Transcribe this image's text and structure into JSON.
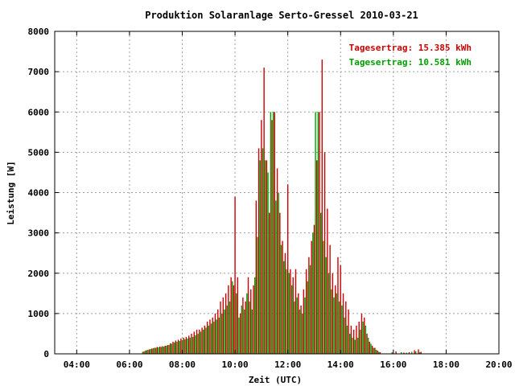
{
  "chart_data": {
    "type": "bar",
    "title": "Produktion Solaranlage Serto-Gressel 2010-03-21",
    "xlabel": "Zeit (UTC)",
    "ylabel": "Leistung [W]",
    "xlim": [
      3.1666667,
      20.0
    ],
    "ylim": [
      0,
      8000
    ],
    "x_ticks": [
      "04:00",
      "06:00",
      "08:00",
      "10:00",
      "12:00",
      "14:00",
      "16:00",
      "18:00",
      "20:00"
    ],
    "x_tick_values": [
      4,
      6,
      8,
      10,
      12,
      14,
      16,
      18,
      20
    ],
    "y_ticks": [
      "0",
      "1000",
      "2000",
      "3000",
      "4000",
      "5000",
      "6000",
      "7000",
      "8000"
    ],
    "y_tick_values": [
      0,
      1000,
      2000,
      3000,
      4000,
      5000,
      6000,
      7000,
      8000
    ],
    "grid": true,
    "legend_position": "top-right",
    "series": [
      {
        "name": "Tagesertrag: 15.385 kWh",
        "color": "#cc0000",
        "points": [
          [
            6.55,
            60
          ],
          [
            6.65,
            90
          ],
          [
            6.75,
            110
          ],
          [
            6.85,
            130
          ],
          [
            6.95,
            150
          ],
          [
            7.05,
            170
          ],
          [
            7.15,
            180
          ],
          [
            7.25,
            190
          ],
          [
            7.35,
            200
          ],
          [
            7.45,
            220
          ],
          [
            7.55,
            260
          ],
          [
            7.65,
            300
          ],
          [
            7.75,
            330
          ],
          [
            7.85,
            350
          ],
          [
            7.95,
            380
          ],
          [
            8.05,
            400
          ],
          [
            8.15,
            420
          ],
          [
            8.25,
            450
          ],
          [
            8.35,
            500
          ],
          [
            8.45,
            550
          ],
          [
            8.55,
            600
          ],
          [
            8.65,
            600
          ],
          [
            8.75,
            650
          ],
          [
            8.85,
            700
          ],
          [
            8.95,
            800
          ],
          [
            9.05,
            850
          ],
          [
            9.15,
            900
          ],
          [
            9.25,
            1000
          ],
          [
            9.35,
            1100
          ],
          [
            9.45,
            1300
          ],
          [
            9.55,
            1400
          ],
          [
            9.65,
            1500
          ],
          [
            9.75,
            1700
          ],
          [
            9.85,
            1900
          ],
          [
            9.95,
            1700
          ],
          [
            10.0,
            3900
          ],
          [
            10.1,
            1900
          ],
          [
            10.2,
            1000
          ],
          [
            10.3,
            1400
          ],
          [
            10.4,
            1300
          ],
          [
            10.5,
            1900
          ],
          [
            10.6,
            1600
          ],
          [
            10.7,
            1700
          ],
          [
            10.8,
            3800
          ],
          [
            10.9,
            5100
          ],
          [
            11.0,
            5800
          ],
          [
            11.1,
            7100
          ],
          [
            11.2,
            4800
          ],
          [
            11.3,
            3500
          ],
          [
            11.4,
            5800
          ],
          [
            11.5,
            6000
          ],
          [
            11.6,
            4600
          ],
          [
            11.7,
            3500
          ],
          [
            11.8,
            2800
          ],
          [
            11.9,
            2500
          ],
          [
            12.0,
            4200
          ],
          [
            12.1,
            2100
          ],
          [
            12.2,
            1900
          ],
          [
            12.3,
            2100
          ],
          [
            12.4,
            1500
          ],
          [
            12.5,
            1200
          ],
          [
            12.6,
            1600
          ],
          [
            12.7,
            2100
          ],
          [
            12.8,
            2400
          ],
          [
            12.9,
            2800
          ],
          [
            13.0,
            3200
          ],
          [
            13.1,
            4800
          ],
          [
            13.2,
            6000
          ],
          [
            13.3,
            7300
          ],
          [
            13.4,
            5000
          ],
          [
            13.5,
            3600
          ],
          [
            13.6,
            2700
          ],
          [
            13.7,
            2000
          ],
          [
            13.8,
            1700
          ],
          [
            13.9,
            2400
          ],
          [
            14.0,
            2200
          ],
          [
            14.1,
            1500
          ],
          [
            14.2,
            1300
          ],
          [
            14.3,
            1100
          ],
          [
            14.4,
            700
          ],
          [
            14.5,
            600
          ],
          [
            14.6,
            700
          ],
          [
            14.7,
            800
          ],
          [
            14.8,
            1000
          ],
          [
            14.9,
            900
          ],
          [
            15.0,
            500
          ],
          [
            15.1,
            300
          ],
          [
            15.2,
            200
          ],
          [
            15.3,
            150
          ],
          [
            15.4,
            80
          ],
          [
            15.5,
            40
          ],
          [
            16.1,
            60
          ],
          [
            16.4,
            30
          ],
          [
            16.6,
            40
          ],
          [
            16.8,
            90
          ],
          [
            16.95,
            110
          ],
          [
            17.05,
            50
          ]
        ]
      },
      {
        "name": "Tagesertrag: 10.581 kWh",
        "color": "#00a000",
        "points": [
          [
            6.5,
            50
          ],
          [
            6.6,
            80
          ],
          [
            6.7,
            100
          ],
          [
            6.8,
            120
          ],
          [
            6.9,
            140
          ],
          [
            7.0,
            150
          ],
          [
            7.1,
            160
          ],
          [
            7.2,
            170
          ],
          [
            7.3,
            180
          ],
          [
            7.4,
            200
          ],
          [
            7.5,
            220
          ],
          [
            7.6,
            250
          ],
          [
            7.7,
            280
          ],
          [
            7.8,
            300
          ],
          [
            7.9,
            320
          ],
          [
            8.0,
            340
          ],
          [
            8.1,
            360
          ],
          [
            8.2,
            380
          ],
          [
            8.3,
            400
          ],
          [
            8.4,
            420
          ],
          [
            8.5,
            460
          ],
          [
            8.6,
            500
          ],
          [
            8.7,
            550
          ],
          [
            8.8,
            600
          ],
          [
            8.9,
            650
          ],
          [
            9.0,
            700
          ],
          [
            9.1,
            750
          ],
          [
            9.2,
            800
          ],
          [
            9.3,
            850
          ],
          [
            9.4,
            900
          ],
          [
            9.5,
            1000
          ],
          [
            9.6,
            1100
          ],
          [
            9.7,
            1200
          ],
          [
            9.8,
            1300
          ],
          [
            9.9,
            1800
          ],
          [
            10.05,
            1500
          ],
          [
            10.15,
            900
          ],
          [
            10.25,
            1200
          ],
          [
            10.35,
            1100
          ],
          [
            10.45,
            1500
          ],
          [
            10.55,
            1300
          ],
          [
            10.65,
            1100
          ],
          [
            10.75,
            1900
          ],
          [
            10.85,
            2900
          ],
          [
            10.95,
            4800
          ],
          [
            11.05,
            5100
          ],
          [
            11.15,
            4800
          ],
          [
            11.25,
            4500
          ],
          [
            11.35,
            6000
          ],
          [
            11.45,
            6000
          ],
          [
            11.55,
            3800
          ],
          [
            11.65,
            4000
          ],
          [
            11.75,
            2700
          ],
          [
            11.85,
            2300
          ],
          [
            11.95,
            2100
          ],
          [
            12.05,
            2000
          ],
          [
            12.15,
            1700
          ],
          [
            12.25,
            1300
          ],
          [
            12.35,
            1400
          ],
          [
            12.45,
            1100
          ],
          [
            12.55,
            1000
          ],
          [
            12.65,
            1400
          ],
          [
            12.75,
            1800
          ],
          [
            12.85,
            2200
          ],
          [
            12.95,
            3000
          ],
          [
            13.05,
            6000
          ],
          [
            13.15,
            6000
          ],
          [
            13.25,
            3500
          ],
          [
            13.35,
            2800
          ],
          [
            13.45,
            2400
          ],
          [
            13.55,
            2000
          ],
          [
            13.65,
            1600
          ],
          [
            13.75,
            1400
          ],
          [
            13.85,
            1500
          ],
          [
            13.95,
            1300
          ],
          [
            14.05,
            1200
          ],
          [
            14.15,
            900
          ],
          [
            14.25,
            700
          ],
          [
            14.35,
            500
          ],
          [
            14.45,
            400
          ],
          [
            14.55,
            350
          ],
          [
            14.65,
            400
          ],
          [
            14.75,
            600
          ],
          [
            14.85,
            800
          ],
          [
            14.95,
            700
          ],
          [
            15.05,
            400
          ],
          [
            15.15,
            250
          ],
          [
            15.25,
            150
          ],
          [
            15.35,
            100
          ],
          [
            15.45,
            50
          ],
          [
            15.95,
            40
          ],
          [
            16.3,
            40
          ],
          [
            16.5,
            30
          ],
          [
            16.7,
            50
          ],
          [
            16.85,
            60
          ],
          [
            17.0,
            40
          ]
        ]
      }
    ]
  }
}
